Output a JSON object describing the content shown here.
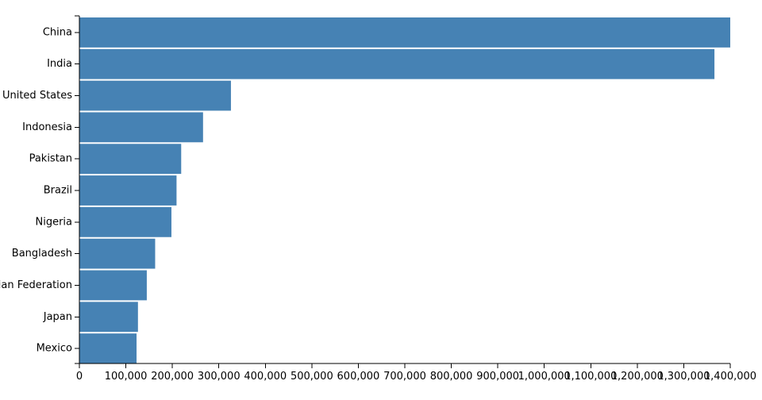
{
  "chart_data": {
    "type": "bar",
    "orientation": "horizontal",
    "categories": [
      "China",
      "India",
      "United States",
      "Indonesia",
      "Pakistan",
      "Brazil",
      "Nigeria",
      "Bangladesh",
      "Russian Federation",
      "Japan",
      "Mexico"
    ],
    "values": [
      1402000,
      1366000,
      326000,
      266000,
      219000,
      209000,
      198000,
      163000,
      145000,
      126000,
      123000
    ],
    "xlim": [
      0,
      1400000
    ],
    "xticks": [
      0,
      100000,
      200000,
      300000,
      400000,
      500000,
      600000,
      700000,
      800000,
      900000,
      1000000,
      1100000,
      1200000,
      1300000,
      1400000
    ],
    "xtick_labels": [
      "0",
      "100,000",
      "200,000",
      "300,000",
      "400,000",
      "500,000",
      "600,000",
      "700,000",
      "800,000",
      "900,000",
      "1,000,000",
      "1,100,000",
      "1,200,000",
      "1,300,000",
      "1,400,000"
    ],
    "bar_color": "#4682b4",
    "grid": false,
    "legend": "none",
    "title": "",
    "xlabel": "",
    "ylabel": ""
  }
}
